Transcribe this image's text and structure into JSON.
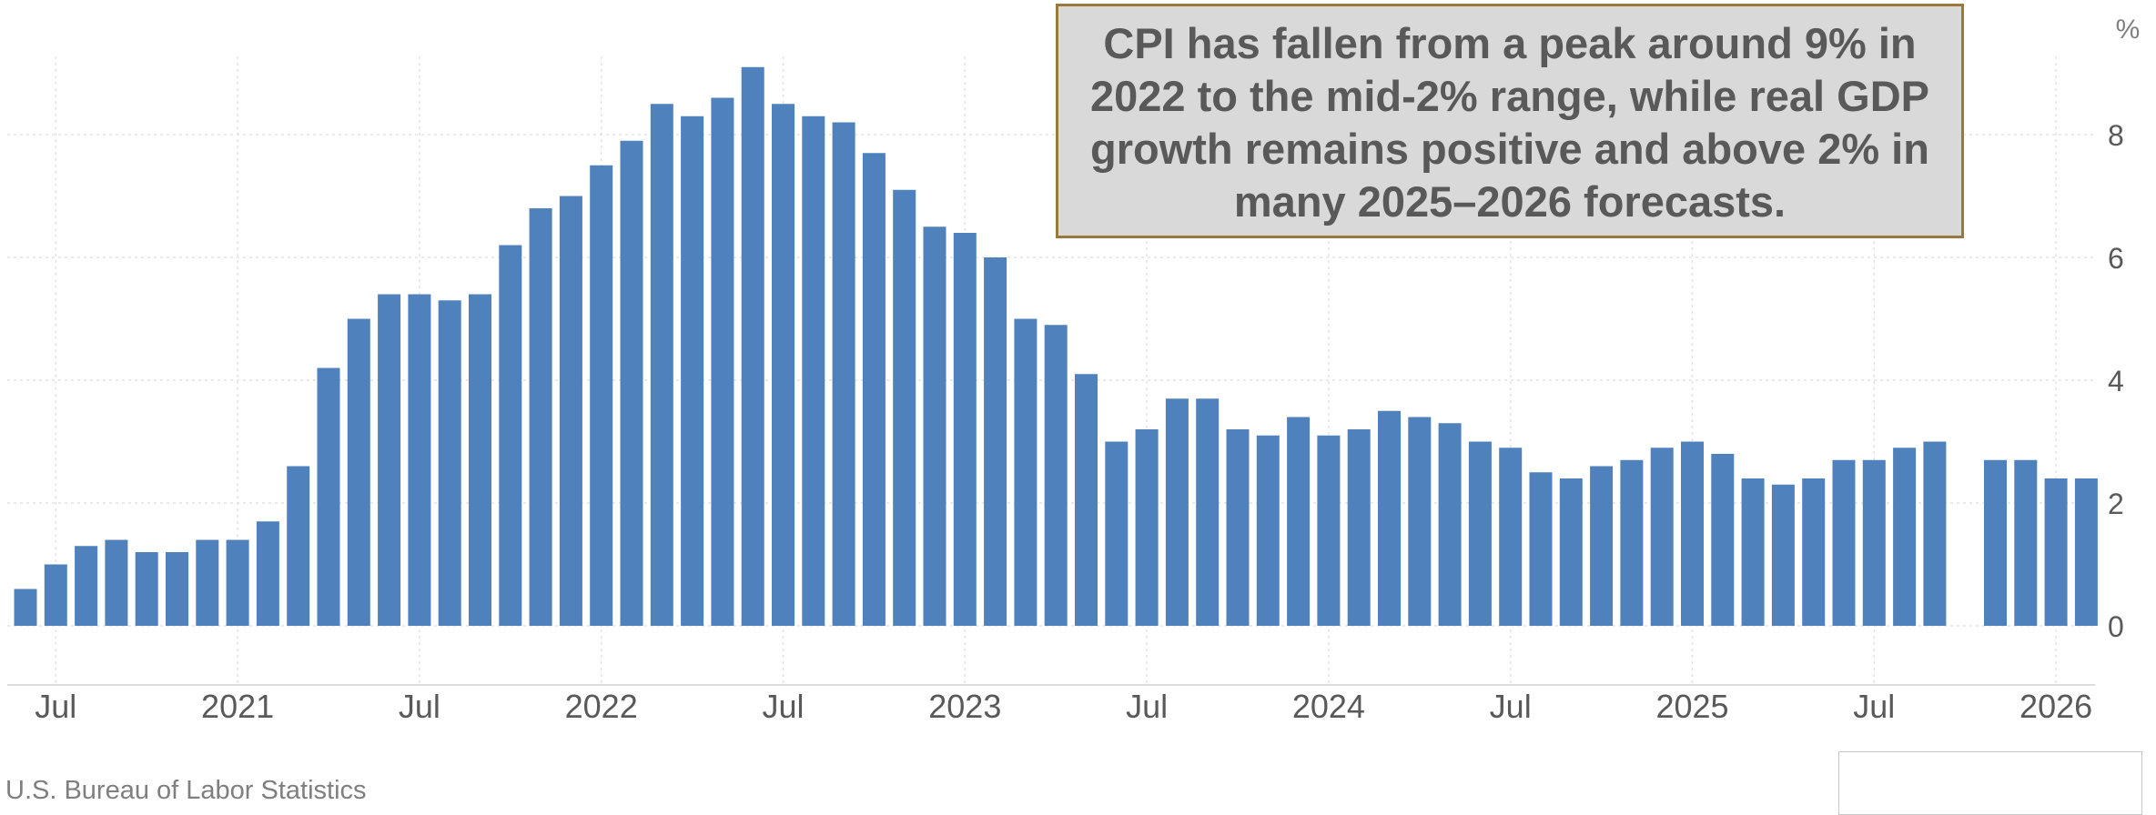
{
  "chart_data": {
    "type": "bar",
    "title": "",
    "xlabel": "",
    "ylabel": "%",
    "y_axis_unit": "%",
    "y_axis_side": "right",
    "ylim": [
      0,
      9
    ],
    "yticks": [
      0,
      2,
      4,
      6,
      8
    ],
    "grid": true,
    "color": "#4f81bd",
    "x_tick_labels": [
      {
        "label": "Jul",
        "month": "2020-07"
      },
      {
        "label": "2021",
        "month": "2021-01"
      },
      {
        "label": "Jul",
        "month": "2021-07"
      },
      {
        "label": "2022",
        "month": "2022-01"
      },
      {
        "label": "Jul",
        "month": "2022-07"
      },
      {
        "label": "2023",
        "month": "2023-01"
      },
      {
        "label": "Jul",
        "month": "2023-07"
      },
      {
        "label": "2024",
        "month": "2024-01"
      },
      {
        "label": "Jul",
        "month": "2024-07"
      },
      {
        "label": "2025",
        "month": "2025-01"
      },
      {
        "label": "Jul",
        "month": "2025-07"
      },
      {
        "label": "2026",
        "month": "2026-01"
      }
    ],
    "categories": [
      "2020-06",
      "2020-07",
      "2020-08",
      "2020-09",
      "2020-10",
      "2020-11",
      "2020-12",
      "2021-01",
      "2021-02",
      "2021-03",
      "2021-04",
      "2021-05",
      "2021-06",
      "2021-07",
      "2021-08",
      "2021-09",
      "2021-10",
      "2021-11",
      "2021-12",
      "2022-01",
      "2022-02",
      "2022-03",
      "2022-04",
      "2022-05",
      "2022-06",
      "2022-07",
      "2022-08",
      "2022-09",
      "2022-10",
      "2022-11",
      "2022-12",
      "2023-01",
      "2023-02",
      "2023-03",
      "2023-04",
      "2023-05",
      "2023-06",
      "2023-07",
      "2023-08",
      "2023-09",
      "2023-10",
      "2023-11",
      "2023-12",
      "2024-01",
      "2024-02",
      "2024-03",
      "2024-04",
      "2024-05",
      "2024-06",
      "2024-07",
      "2024-08",
      "2024-09",
      "2024-10",
      "2024-11",
      "2024-12",
      "2025-01",
      "2025-02",
      "2025-03",
      "2025-04",
      "2025-05",
      "2025-06",
      "2025-07",
      "2025-08",
      "2025-09",
      "2025-10",
      "2025-11",
      "2025-12",
      "2026-01",
      "2026-02"
    ],
    "values": [
      0.6,
      1.0,
      1.3,
      1.4,
      1.2,
      1.2,
      1.4,
      1.4,
      1.7,
      2.6,
      4.2,
      5.0,
      5.4,
      5.4,
      5.3,
      5.4,
      6.2,
      6.8,
      7.0,
      7.5,
      7.9,
      8.5,
      8.3,
      8.6,
      9.1,
      8.5,
      8.3,
      8.2,
      7.7,
      7.1,
      6.5,
      6.4,
      6.0,
      5.0,
      4.9,
      4.1,
      3.0,
      3.2,
      3.7,
      3.7,
      3.2,
      3.1,
      3.4,
      3.1,
      3.2,
      3.5,
      3.4,
      3.3,
      3.0,
      2.9,
      2.5,
      2.4,
      2.6,
      2.7,
      2.9,
      3.0,
      2.8,
      2.4,
      2.3,
      2.4,
      2.7,
      2.7,
      2.9,
      3.0,
      null,
      2.7,
      2.7,
      2.4,
      2.4
    ]
  },
  "annotation": {
    "text": "CPI has fallen from a peak around 9% in 2022 to the mid-2% range, while real GDP growth remains positive and above 2% in many 2025–2026 forecasts."
  },
  "source": {
    "text": "U.S. Bureau of Labor Statistics"
  }
}
